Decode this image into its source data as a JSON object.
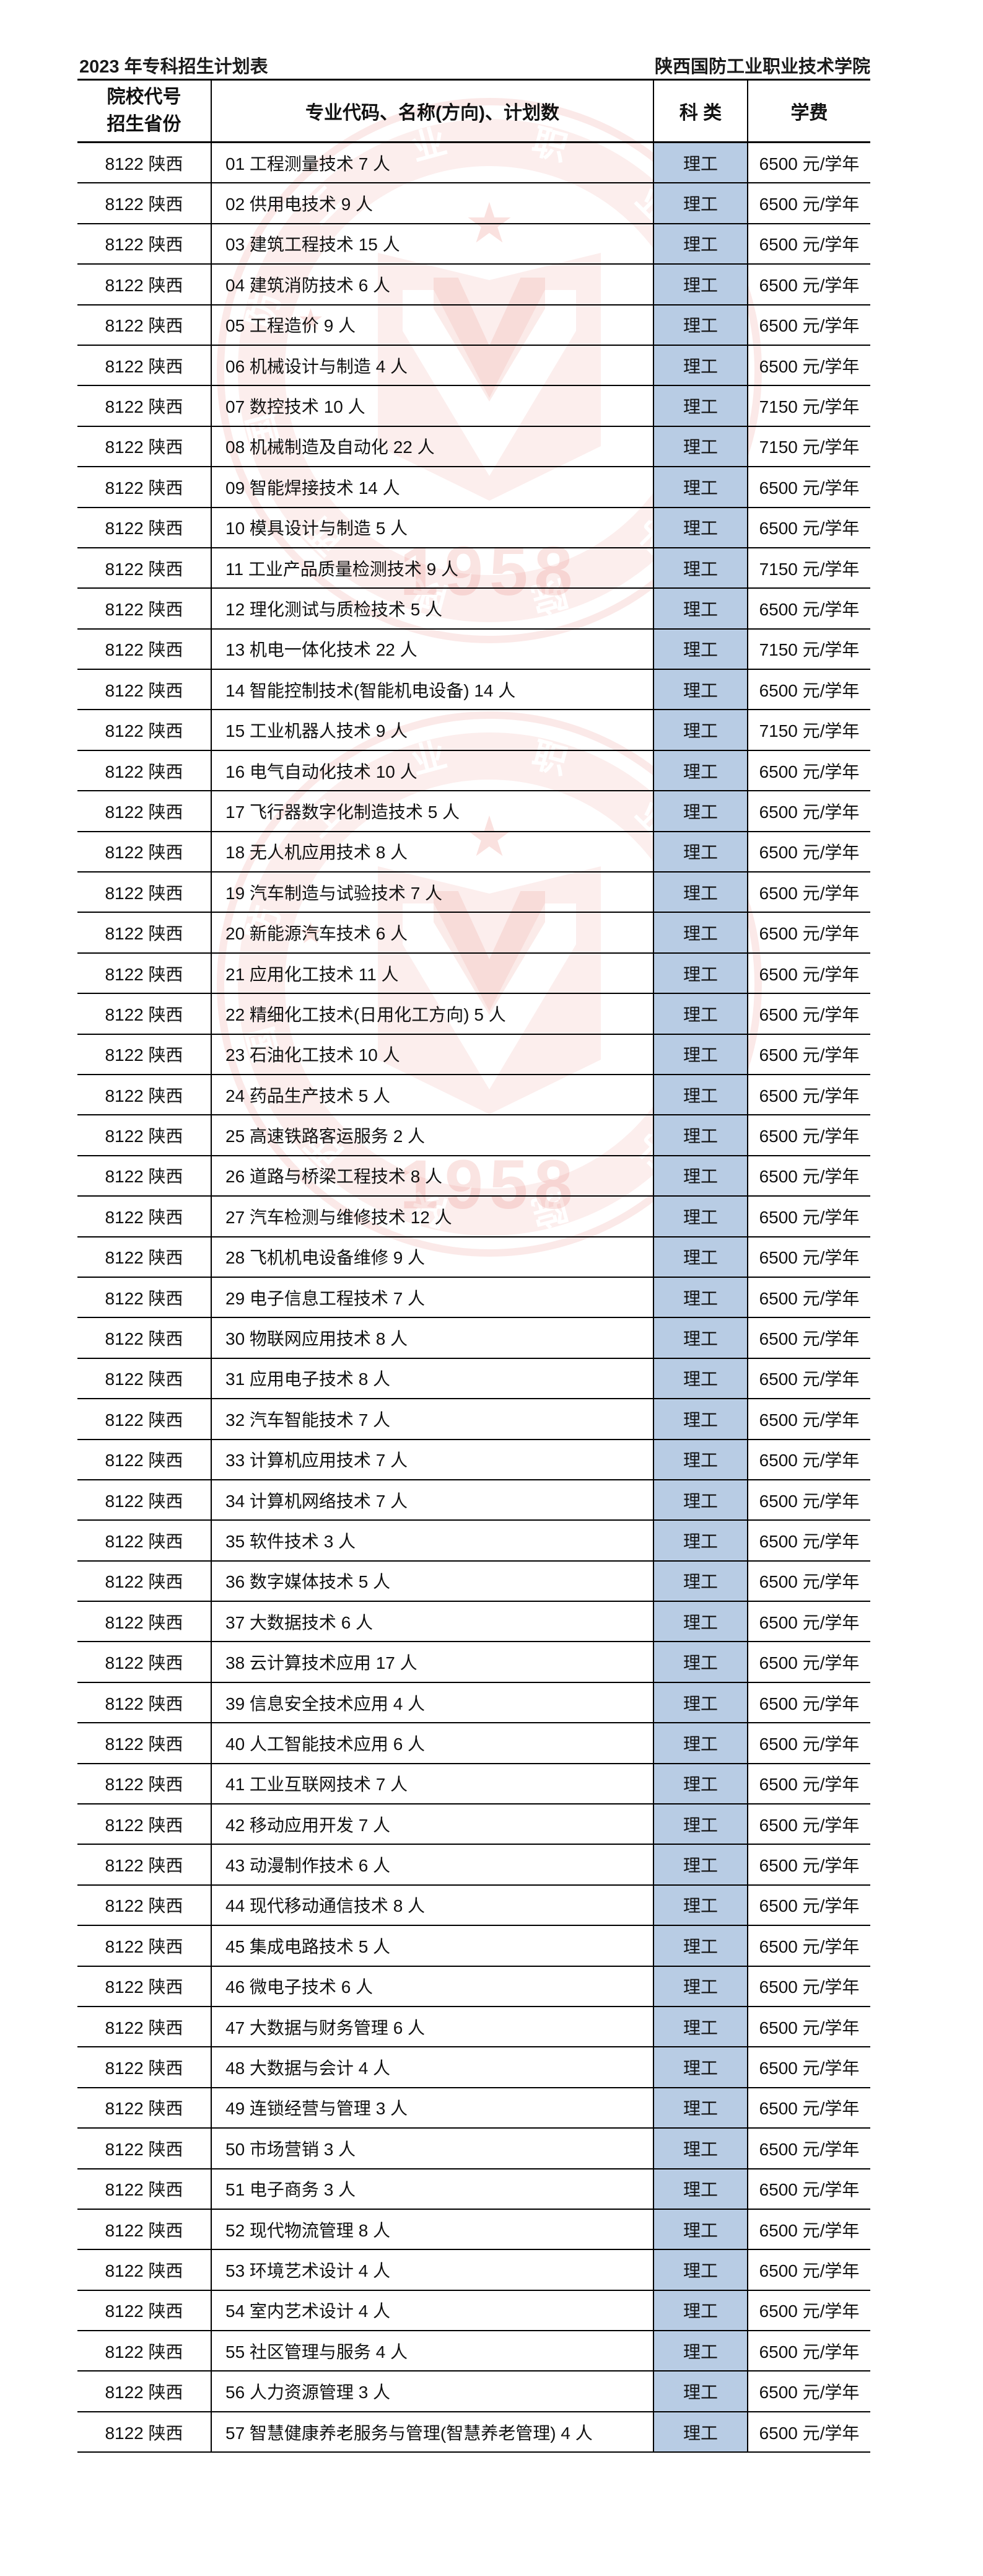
{
  "page": {
    "title_left": "2023 年专科招生计划表",
    "title_right": "陕西国防工业职业技术学院"
  },
  "table": {
    "header": {
      "col1_line1": "院校代号",
      "col1_line2": "招生省份",
      "col2": "专业代码、名称(方向)、计划数",
      "col3": "科 类",
      "col4": "学费"
    },
    "rows": [
      {
        "code_province": "8122 陕西",
        "major": "01 工程测量技术 7 人",
        "category": "理工",
        "tuition": "6500 元/学年"
      },
      {
        "code_province": "8122 陕西",
        "major": "02 供用电技术 9 人",
        "category": "理工",
        "tuition": "6500 元/学年"
      },
      {
        "code_province": "8122 陕西",
        "major": "03 建筑工程技术 15 人",
        "category": "理工",
        "tuition": "6500 元/学年"
      },
      {
        "code_province": "8122 陕西",
        "major": "04 建筑消防技术 6 人",
        "category": "理工",
        "tuition": "6500 元/学年"
      },
      {
        "code_province": "8122 陕西",
        "major": "05 工程造价 9 人",
        "category": "理工",
        "tuition": "6500 元/学年"
      },
      {
        "code_province": "8122 陕西",
        "major": "06 机械设计与制造 4 人",
        "category": "理工",
        "tuition": "6500 元/学年"
      },
      {
        "code_province": "8122 陕西",
        "major": "07 数控技术 10 人",
        "category": "理工",
        "tuition": "7150 元/学年"
      },
      {
        "code_province": "8122 陕西",
        "major": "08 机械制造及自动化 22 人",
        "category": "理工",
        "tuition": "7150 元/学年"
      },
      {
        "code_province": "8122 陕西",
        "major": "09 智能焊接技术 14 人",
        "category": "理工",
        "tuition": "6500 元/学年"
      },
      {
        "code_province": "8122 陕西",
        "major": "10 模具设计与制造 5 人",
        "category": "理工",
        "tuition": "6500 元/学年"
      },
      {
        "code_province": "8122 陕西",
        "major": "11 工业产品质量检测技术 9 人",
        "category": "理工",
        "tuition": "7150 元/学年"
      },
      {
        "code_province": "8122 陕西",
        "major": "12 理化测试与质检技术 5 人",
        "category": "理工",
        "tuition": "6500 元/学年"
      },
      {
        "code_province": "8122 陕西",
        "major": "13 机电一体化技术 22 人",
        "category": "理工",
        "tuition": "7150 元/学年"
      },
      {
        "code_province": "8122 陕西",
        "major": "14 智能控制技术(智能机电设备) 14 人",
        "category": "理工",
        "tuition": "6500 元/学年"
      },
      {
        "code_province": "8122 陕西",
        "major": "15 工业机器人技术 9 人",
        "category": "理工",
        "tuition": "7150 元/学年"
      },
      {
        "code_province": "8122 陕西",
        "major": "16 电气自动化技术 10 人",
        "category": "理工",
        "tuition": "6500 元/学年"
      },
      {
        "code_province": "8122 陕西",
        "major": "17 飞行器数字化制造技术 5 人",
        "category": "理工",
        "tuition": "6500 元/学年"
      },
      {
        "code_province": "8122 陕西",
        "major": "18 无人机应用技术 8 人",
        "category": "理工",
        "tuition": "6500 元/学年"
      },
      {
        "code_province": "8122 陕西",
        "major": "19 汽车制造与试验技术 7 人",
        "category": "理工",
        "tuition": "6500 元/学年"
      },
      {
        "code_province": "8122 陕西",
        "major": "20 新能源汽车技术 6 人",
        "category": "理工",
        "tuition": "6500 元/学年"
      },
      {
        "code_province": "8122 陕西",
        "major": "21 应用化工技术 11 人",
        "category": "理工",
        "tuition": "6500 元/学年"
      },
      {
        "code_province": "8122 陕西",
        "major": "22 精细化工技术(日用化工方向) 5 人",
        "category": "理工",
        "tuition": "6500 元/学年"
      },
      {
        "code_province": "8122 陕西",
        "major": "23 石油化工技术 10 人",
        "category": "理工",
        "tuition": "6500 元/学年"
      },
      {
        "code_province": "8122 陕西",
        "major": "24 药品生产技术 5 人",
        "category": "理工",
        "tuition": "6500 元/学年"
      },
      {
        "code_province": "8122 陕西",
        "major": "25 高速铁路客运服务 2 人",
        "category": "理工",
        "tuition": "6500 元/学年"
      },
      {
        "code_province": "8122 陕西",
        "major": "26 道路与桥梁工程技术 8 人",
        "category": "理工",
        "tuition": "6500 元/学年"
      },
      {
        "code_province": "8122 陕西",
        "major": "27 汽车检测与维修技术 12 人",
        "category": "理工",
        "tuition": "6500 元/学年"
      },
      {
        "code_province": "8122 陕西",
        "major": "28 飞机机电设备维修 9 人",
        "category": "理工",
        "tuition": "6500 元/学年"
      },
      {
        "code_province": "8122 陕西",
        "major": "29 电子信息工程技术 7 人",
        "category": "理工",
        "tuition": "6500 元/学年"
      },
      {
        "code_province": "8122 陕西",
        "major": "30 物联网应用技术 8 人",
        "category": "理工",
        "tuition": "6500 元/学年"
      },
      {
        "code_province": "8122 陕西",
        "major": "31 应用电子技术 8 人",
        "category": "理工",
        "tuition": "6500 元/学年"
      },
      {
        "code_province": "8122 陕西",
        "major": "32 汽车智能技术 7 人",
        "category": "理工",
        "tuition": "6500 元/学年"
      },
      {
        "code_province": "8122 陕西",
        "major": "33 计算机应用技术 7 人",
        "category": "理工",
        "tuition": "6500 元/学年"
      },
      {
        "code_province": "8122 陕西",
        "major": "34 计算机网络技术 7 人",
        "category": "理工",
        "tuition": "6500 元/学年"
      },
      {
        "code_province": "8122 陕西",
        "major": "35 软件技术 3 人",
        "category": "理工",
        "tuition": "6500 元/学年"
      },
      {
        "code_province": "8122 陕西",
        "major": "36 数字媒体技术 5 人",
        "category": "理工",
        "tuition": "6500 元/学年"
      },
      {
        "code_province": "8122 陕西",
        "major": "37 大数据技术 6 人",
        "category": "理工",
        "tuition": "6500 元/学年"
      },
      {
        "code_province": "8122 陕西",
        "major": "38 云计算技术应用 17 人",
        "category": "理工",
        "tuition": "6500 元/学年"
      },
      {
        "code_province": "8122 陕西",
        "major": "39 信息安全技术应用 4 人",
        "category": "理工",
        "tuition": "6500 元/学年"
      },
      {
        "code_province": "8122 陕西",
        "major": "40 人工智能技术应用 6 人",
        "category": "理工",
        "tuition": "6500 元/学年"
      },
      {
        "code_province": "8122 陕西",
        "major": "41 工业互联网技术 7 人",
        "category": "理工",
        "tuition": "6500 元/学年"
      },
      {
        "code_province": "8122 陕西",
        "major": "42 移动应用开发 7 人",
        "category": "理工",
        "tuition": "6500 元/学年"
      },
      {
        "code_province": "8122 陕西",
        "major": "43 动漫制作技术 6 人",
        "category": "理工",
        "tuition": "6500 元/学年"
      },
      {
        "code_province": "8122 陕西",
        "major": "44 现代移动通信技术 8 人",
        "category": "理工",
        "tuition": "6500 元/学年"
      },
      {
        "code_province": "8122 陕西",
        "major": "45 集成电路技术 5 人",
        "category": "理工",
        "tuition": "6500 元/学年"
      },
      {
        "code_province": "8122 陕西",
        "major": "46 微电子技术 6 人",
        "category": "理工",
        "tuition": "6500 元/学年"
      },
      {
        "code_province": "8122 陕西",
        "major": "47 大数据与财务管理 6 人",
        "category": "理工",
        "tuition": "6500 元/学年"
      },
      {
        "code_province": "8122 陕西",
        "major": "48 大数据与会计 4 人",
        "category": "理工",
        "tuition": "6500 元/学年"
      },
      {
        "code_province": "8122 陕西",
        "major": "49 连锁经营与管理 3 人",
        "category": "理工",
        "tuition": "6500 元/学年"
      },
      {
        "code_province": "8122 陕西",
        "major": "50 市场营销 3 人",
        "category": "理工",
        "tuition": "6500 元/学年"
      },
      {
        "code_province": "8122 陕西",
        "major": "51 电子商务 3 人",
        "category": "理工",
        "tuition": "6500 元/学年"
      },
      {
        "code_province": "8122 陕西",
        "major": "52 现代物流管理 8 人",
        "category": "理工",
        "tuition": "6500 元/学年"
      },
      {
        "code_province": "8122 陕西",
        "major": "53 环境艺术设计 4 人",
        "category": "理工",
        "tuition": "6500 元/学年"
      },
      {
        "code_province": "8122 陕西",
        "major": "54 室内艺术设计 4 人",
        "category": "理工",
        "tuition": "6500 元/学年"
      },
      {
        "code_province": "8122 陕西",
        "major": "55 社区管理与服务 4 人",
        "category": "理工",
        "tuition": "6500 元/学年"
      },
      {
        "code_province": "8122 陕西",
        "major": "56 人力资源管理 3 人",
        "category": "理工",
        "tuition": "6500 元/学年"
      },
      {
        "code_province": "8122 陕西",
        "major": "57 智慧健康养老服务与管理(智慧养老管理) 4 人",
        "category": "理工",
        "tuition": "6500 元/学年"
      }
    ]
  },
  "watermark": {
    "ring_text": "陕西国防工业职业技术学院",
    "year": "1958",
    "star": "★"
  },
  "colors": {
    "category_bg": "#b8cce4",
    "border": "#000000",
    "watermark_red": "#e2584c"
  }
}
